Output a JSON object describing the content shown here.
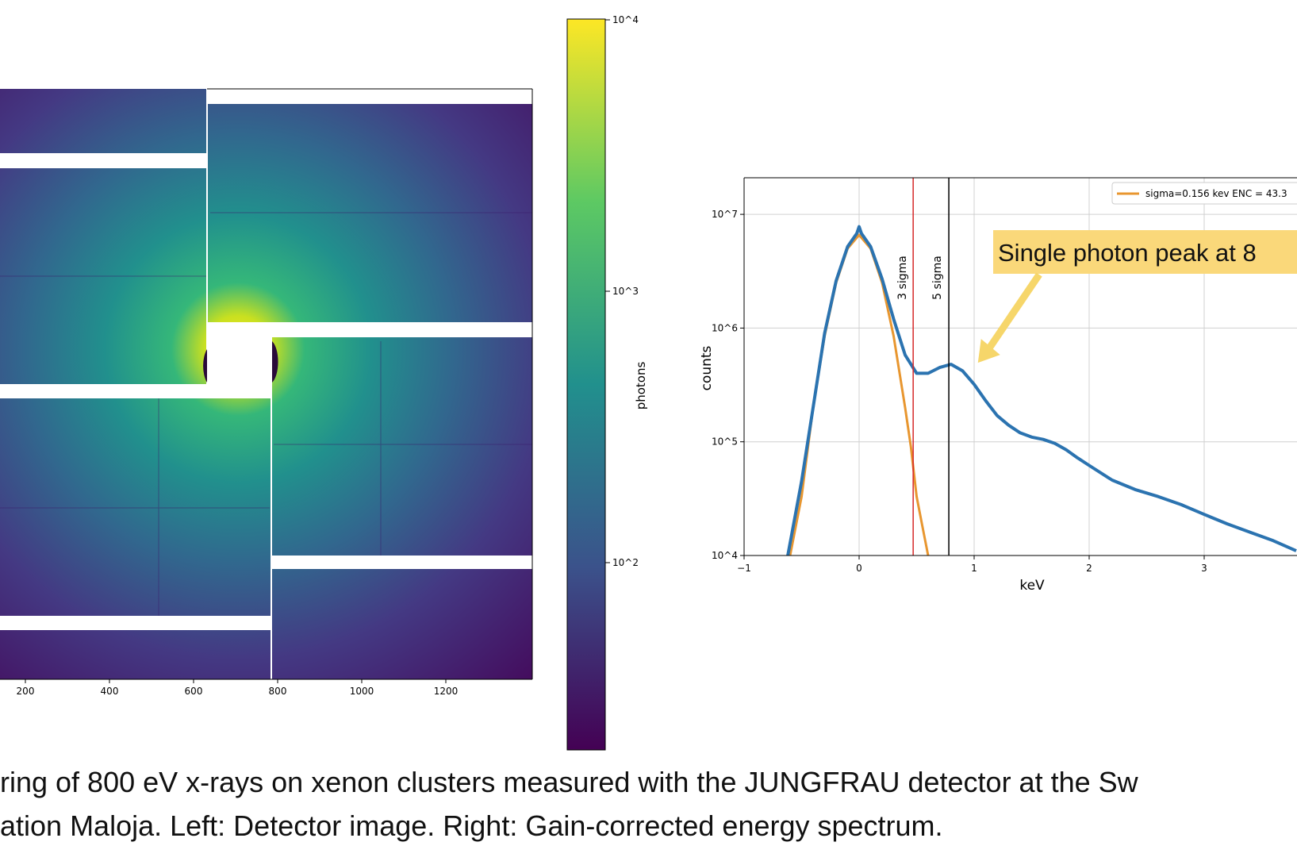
{
  "detector_image": {
    "x_ticks": [
      "200",
      "400",
      "600",
      "800",
      "1000",
      "1200"
    ],
    "colorbar": {
      "label": "photons",
      "ticks": [
        "10^4",
        "10^3",
        "10^2"
      ],
      "colormap": [
        "#440154",
        "#3b528b",
        "#21908d",
        "#5dc963",
        "#fde725"
      ]
    }
  },
  "chart_data": {
    "type": "line",
    "xlabel": "keV",
    "ylabel": "counts",
    "xlim": [
      -1,
      3.8
    ],
    "ylim": [
      10000,
      15000000
    ],
    "yscale": "log",
    "x_ticks": [
      "−1",
      "0",
      "1",
      "2",
      "3"
    ],
    "y_ticks": [
      "10^7",
      "10^6",
      "10^5",
      "10^4"
    ],
    "grid": true,
    "legend_position": "top-right",
    "series": [
      {
        "name": "",
        "color": "#2b73b0",
        "x": [
          -0.62,
          -0.5,
          -0.4,
          -0.3,
          -0.2,
          -0.1,
          -0.02,
          0.0,
          0.02,
          0.1,
          0.2,
          0.3,
          0.4,
          0.5,
          0.6,
          0.7,
          0.8,
          0.9,
          1.0,
          1.1,
          1.2,
          1.3,
          1.4,
          1.5,
          1.6,
          1.7,
          1.8,
          1.9,
          2.0,
          2.2,
          2.4,
          2.6,
          2.8,
          3.0,
          3.2,
          3.4,
          3.6,
          3.8
        ],
        "y": [
          10000,
          45000,
          200000,
          900000,
          2600000,
          5200000,
          6800000,
          7800000,
          6800000,
          5200000,
          2700000,
          1200000,
          580000,
          400000,
          400000,
          450000,
          480000,
          420000,
          320000,
          230000,
          170000,
          140000,
          120000,
          110000,
          105000,
          97000,
          85000,
          72000,
          62000,
          46000,
          38000,
          33000,
          28000,
          23000,
          19000,
          16000,
          13500,
          11000
        ]
      },
      {
        "name": "sigma=0.156 kev ENC = 43.3",
        "color": "#e8962f",
        "x": [
          -0.6,
          -0.5,
          -0.4,
          -0.3,
          -0.2,
          -0.1,
          0.0,
          0.1,
          0.2,
          0.3,
          0.4,
          0.45,
          0.5,
          0.55,
          0.6
        ],
        "y": [
          10000,
          33000,
          200000,
          850000,
          2500000,
          5000000,
          6600000,
          5000000,
          2500000,
          850000,
          200000,
          90000,
          33000,
          18000,
          10000
        ]
      }
    ],
    "vlines": [
      {
        "x": 0.47,
        "label": "3 sigma",
        "color": "#d62728"
      },
      {
        "x": 0.78,
        "label": "5 sigma",
        "color": "#000000"
      }
    ],
    "annotation": {
      "text": "Single photon peak at 8",
      "target_x": 0.95,
      "target_y": 450000,
      "box_color": "#fad87a",
      "arrow_color": "#f6d66a"
    }
  },
  "caption": {
    "line1": "ring of 800 eV x-rays on xenon clusters measured with the JUNGFRAU detector at the Sw",
    "line2": "ation Maloja. Left: Detector image. Right: Gain-corrected energy spectrum."
  }
}
